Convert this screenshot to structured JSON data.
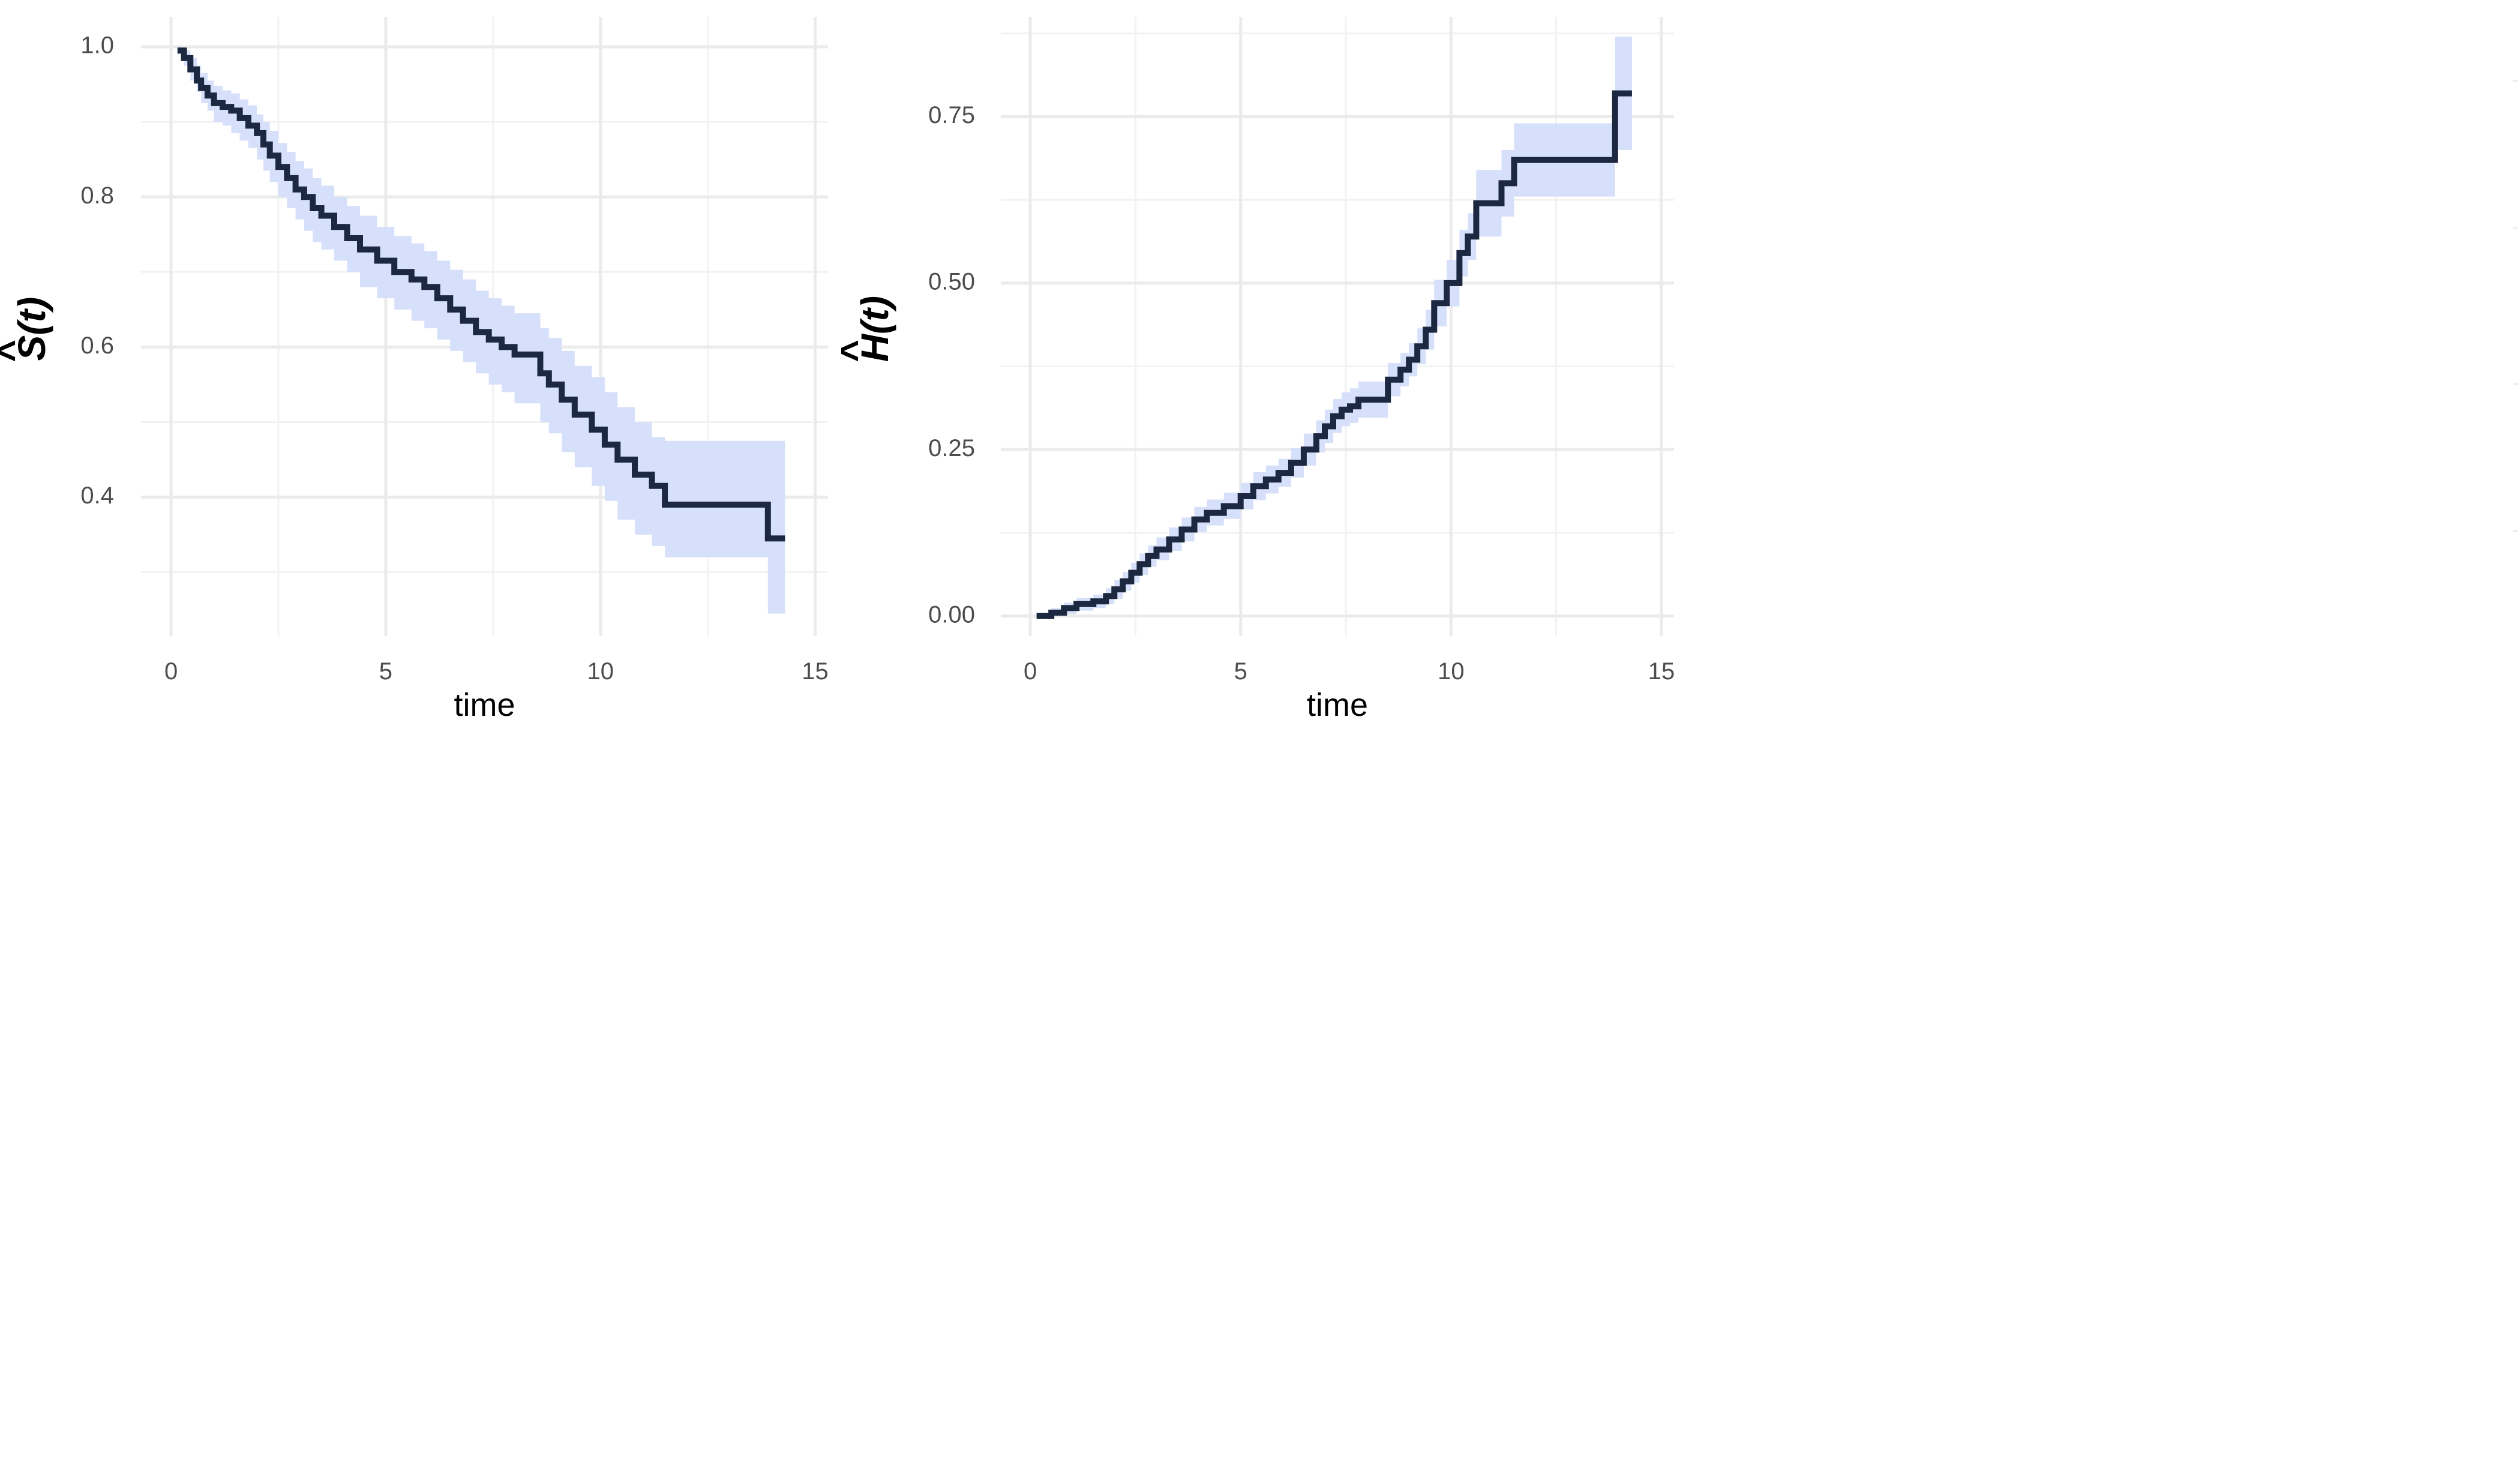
{
  "chart_data": [
    {
      "type": "line",
      "panel": "survival",
      "xlabel": "time",
      "ylabel_letter": "S",
      "ylabel_hat": "^",
      "ylabel_arg": "(t)",
      "xlim": [
        -0.7,
        15.3
      ],
      "ylim": [
        0.215,
        1.04
      ],
      "xticks": [
        0,
        5,
        10,
        15
      ],
      "xtick_labels": [
        "0",
        "5",
        "10",
        "15"
      ],
      "xticks_minor": [
        2.5,
        7.5,
        12.5
      ],
      "yticks": [
        0.4,
        0.6,
        0.8,
        1.0
      ],
      "ytick_labels": [
        "0.4",
        "0.6",
        "0.8",
        "1.0"
      ],
      "yticks_minor": [
        0.3,
        0.5,
        0.7,
        0.9
      ],
      "grid": true,
      "colors": {
        "line": "#1c2740",
        "band": "#d6e0fa"
      },
      "series": [
        {
          "name": "",
          "x": [
            0.15,
            0.3,
            0.45,
            0.6,
            0.7,
            0.85,
            1.0,
            1.2,
            1.4,
            1.6,
            1.8,
            2.0,
            2.15,
            2.3,
            2.5,
            2.7,
            2.9,
            3.1,
            3.3,
            3.5,
            3.8,
            4.1,
            4.4,
            4.8,
            5.2,
            5.6,
            5.9,
            6.2,
            6.5,
            6.8,
            7.1,
            7.4,
            7.7,
            8.0,
            8.6,
            8.8,
            9.1,
            9.4,
            9.8,
            10.1,
            10.4,
            10.8,
            11.2,
            11.5,
            13.9,
            14.3
          ],
          "y": [
            0.995,
            0.985,
            0.97,
            0.955,
            0.945,
            0.935,
            0.925,
            0.92,
            0.915,
            0.905,
            0.895,
            0.885,
            0.87,
            0.855,
            0.84,
            0.825,
            0.81,
            0.8,
            0.785,
            0.775,
            0.76,
            0.745,
            0.73,
            0.715,
            0.7,
            0.69,
            0.68,
            0.665,
            0.65,
            0.635,
            0.62,
            0.61,
            0.6,
            0.59,
            0.565,
            0.55,
            0.53,
            0.51,
            0.49,
            0.47,
            0.45,
            0.43,
            0.415,
            0.39,
            0.345,
            0.345
          ],
          "lower": [
            0.99,
            0.975,
            0.955,
            0.94,
            0.925,
            0.915,
            0.9,
            0.895,
            0.885,
            0.875,
            0.865,
            0.85,
            0.835,
            0.82,
            0.8,
            0.785,
            0.77,
            0.755,
            0.74,
            0.73,
            0.715,
            0.7,
            0.68,
            0.665,
            0.65,
            0.635,
            0.625,
            0.61,
            0.595,
            0.58,
            0.565,
            0.55,
            0.54,
            0.525,
            0.5,
            0.485,
            0.46,
            0.44,
            0.415,
            0.395,
            0.37,
            0.35,
            0.335,
            0.32,
            0.245,
            0.245
          ],
          "upper": [
            1.0,
            0.995,
            0.985,
            0.975,
            0.965,
            0.955,
            0.948,
            0.942,
            0.938,
            0.93,
            0.922,
            0.91,
            0.9,
            0.888,
            0.872,
            0.86,
            0.848,
            0.838,
            0.825,
            0.815,
            0.8,
            0.788,
            0.775,
            0.76,
            0.748,
            0.738,
            0.728,
            0.715,
            0.703,
            0.69,
            0.675,
            0.665,
            0.655,
            0.645,
            0.625,
            0.612,
            0.595,
            0.575,
            0.56,
            0.54,
            0.52,
            0.5,
            0.48,
            0.475,
            0.475,
            0.475
          ]
        }
      ]
    },
    {
      "type": "line",
      "panel": "cumulative-hazard",
      "xlabel": "time",
      "ylabel_letter": "H",
      "ylabel_hat": "^",
      "ylabel_arg": "(t)",
      "xlim": [
        -0.7,
        15.3
      ],
      "ylim": [
        -0.03,
        0.9
      ],
      "xticks": [
        0,
        5,
        10,
        15
      ],
      "xtick_labels": [
        "0",
        "5",
        "10",
        "15"
      ],
      "xticks_minor": [
        2.5,
        7.5,
        12.5
      ],
      "yticks": [
        0.0,
        0.25,
        0.5,
        0.75
      ],
      "ytick_labels": [
        "0.00",
        "0.25",
        "0.50",
        "0.75"
      ],
      "yticks_minor": [
        0.125,
        0.375,
        0.625,
        0.875
      ],
      "grid": true,
      "colors": {
        "line": "#1c2740",
        "band": "#d6e0fa"
      },
      "series": [
        {
          "name": "",
          "x": [
            0.15,
            0.5,
            0.8,
            1.1,
            1.5,
            1.8,
            2.0,
            2.2,
            2.4,
            2.6,
            2.8,
            3.0,
            3.3,
            3.6,
            3.9,
            4.2,
            4.6,
            5.0,
            5.3,
            5.6,
            5.9,
            6.2,
            6.5,
            6.8,
            7.0,
            7.2,
            7.4,
            7.6,
            7.8,
            8.0,
            8.5,
            8.8,
            9.0,
            9.2,
            9.4,
            9.6,
            9.9,
            10.2,
            10.4,
            10.6,
            11.2,
            11.5,
            13.9,
            14.3
          ],
          "y": [
            0.0,
            0.005,
            0.012,
            0.018,
            0.022,
            0.03,
            0.04,
            0.052,
            0.065,
            0.078,
            0.09,
            0.1,
            0.115,
            0.13,
            0.145,
            0.155,
            0.165,
            0.18,
            0.195,
            0.205,
            0.215,
            0.23,
            0.25,
            0.27,
            0.285,
            0.3,
            0.31,
            0.315,
            0.325,
            0.325,
            0.355,
            0.37,
            0.385,
            0.405,
            0.43,
            0.47,
            0.5,
            0.545,
            0.57,
            0.62,
            0.65,
            0.685,
            0.785,
            0.785
          ],
          "lower": [
            0.0,
            0.0,
            0.003,
            0.008,
            0.012,
            0.018,
            0.026,
            0.038,
            0.05,
            0.062,
            0.074,
            0.084,
            0.098,
            0.112,
            0.126,
            0.136,
            0.146,
            0.16,
            0.174,
            0.184,
            0.194,
            0.208,
            0.226,
            0.246,
            0.26,
            0.275,
            0.285,
            0.29,
            0.298,
            0.298,
            0.33,
            0.345,
            0.36,
            0.378,
            0.4,
            0.435,
            0.465,
            0.51,
            0.535,
            0.57,
            0.6,
            0.63,
            0.7,
            0.7
          ],
          "upper": [
            0.005,
            0.012,
            0.02,
            0.027,
            0.032,
            0.042,
            0.054,
            0.066,
            0.08,
            0.094,
            0.106,
            0.118,
            0.133,
            0.148,
            0.164,
            0.175,
            0.185,
            0.2,
            0.216,
            0.226,
            0.236,
            0.252,
            0.274,
            0.294,
            0.31,
            0.326,
            0.336,
            0.342,
            0.352,
            0.352,
            0.38,
            0.395,
            0.41,
            0.432,
            0.46,
            0.505,
            0.535,
            0.58,
            0.605,
            0.67,
            0.7,
            0.74,
            0.87,
            0.87
          ]
        }
      ]
    }
  ]
}
